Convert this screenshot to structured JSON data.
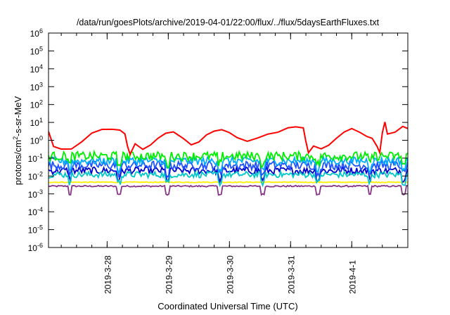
{
  "chart_data": {
    "type": "line",
    "title": "/data/run/goesPlots/archive/2019-04-01/22:00/flux/../flux/5daysEarthFluxes.txt",
    "xlabel": "Coordinated Universal Time (UTC)",
    "ylabel": {
      "base": "protons/cm",
      "sup": "2",
      "rest": "-s-sr-MeV"
    },
    "y_scale": "log",
    "ylim": [
      1e-06,
      1000000.0
    ],
    "x_range_days": [
      "2019-03-27 01:00",
      "2019-04-01 22:00"
    ],
    "y_ticks": [
      {
        "value": 1000000.0,
        "base": "10",
        "exp": "6"
      },
      {
        "value": 100000.0,
        "base": "10",
        "exp": "5"
      },
      {
        "value": 10000.0,
        "base": "10",
        "exp": "4"
      },
      {
        "value": 1000.0,
        "base": "10",
        "exp": "3"
      },
      {
        "value": 100.0,
        "base": "10",
        "exp": "2"
      },
      {
        "value": 10.0,
        "base": "10",
        "exp": "1"
      },
      {
        "value": 1.0,
        "base": "10",
        "exp": "0"
      },
      {
        "value": 0.1,
        "base": "10",
        "exp": "-1"
      },
      {
        "value": 0.01,
        "base": "10",
        "exp": "-2"
      },
      {
        "value": 0.001,
        "base": "10",
        "exp": "-3"
      },
      {
        "value": 0.0001,
        "base": "10",
        "exp": "-4"
      },
      {
        "value": 1e-05,
        "base": "10",
        "exp": "-5"
      },
      {
        "value": 1e-06,
        "base": "10",
        "exp": "-6"
      }
    ],
    "x_ticks": [
      {
        "label": "2019-3-28",
        "date": "2019-03-28"
      },
      {
        "label": "2019-3-29",
        "date": "2019-03-29"
      },
      {
        "label": "2019-3-30",
        "date": "2019-03-30"
      },
      {
        "label": "2019-3-31",
        "date": "2019-03-31"
      },
      {
        "label": "2019-4-1",
        "date": "2019-04-01"
      }
    ],
    "grid": false,
    "series": [
      {
        "color": "#ff0000",
        "points": [
          [
            "2019-03-27 01:00",
            3.5
          ],
          [
            "2019-03-27 03:00",
            0.5
          ],
          [
            "2019-03-27 06:00",
            0.3
          ],
          [
            "2019-03-27 10:00",
            0.3
          ],
          [
            "2019-03-27 14:00",
            0.8
          ],
          [
            "2019-03-27 18:00",
            2.5
          ],
          [
            "2019-03-27 22:00",
            4
          ],
          [
            "2019-03-28 02:00",
            4.5
          ],
          [
            "2019-03-28 05:00",
            4
          ],
          [
            "2019-03-28 07:00",
            2.5
          ],
          [
            "2019-03-28 08:00",
            0.5
          ],
          [
            "2019-03-28 09:00",
            0.15
          ],
          [
            "2019-03-28 11:00",
            0.6
          ],
          [
            "2019-03-28 14:00",
            0.3
          ],
          [
            "2019-03-28 17:00",
            0.5
          ],
          [
            "2019-03-28 20:00",
            1.2
          ],
          [
            "2019-03-28 23:00",
            2.5
          ],
          [
            "2019-03-29 02:00",
            3
          ],
          [
            "2019-03-29 06:00",
            1.2
          ],
          [
            "2019-03-29 09:00",
            0.6
          ],
          [
            "2019-03-29 12:00",
            0.8
          ],
          [
            "2019-03-29 15:00",
            1.8
          ],
          [
            "2019-03-29 18:00",
            3
          ],
          [
            "2019-03-29 21:00",
            4
          ],
          [
            "2019-03-30 00:00",
            3
          ],
          [
            "2019-03-30 03:00",
            1.5
          ],
          [
            "2019-03-30 07:00",
            0.9
          ],
          [
            "2019-03-30 11:00",
            1.2
          ],
          [
            "2019-03-30 15:00",
            2
          ],
          [
            "2019-03-30 19:00",
            3
          ],
          [
            "2019-03-30 23:00",
            4.5
          ],
          [
            "2019-03-31 02:00",
            5
          ],
          [
            "2019-03-31 05:00",
            4.5
          ],
          [
            "2019-03-31 06:00",
            1
          ],
          [
            "2019-03-31 07:00",
            0.2
          ],
          [
            "2019-03-31 09:00",
            0.5
          ],
          [
            "2019-03-31 12:00",
            0.3
          ],
          [
            "2019-03-31 15:00",
            0.6
          ],
          [
            "2019-03-31 18:00",
            1.2
          ],
          [
            "2019-03-31 21:00",
            3
          ],
          [
            "2019-04-01 00:00",
            4.5
          ],
          [
            "2019-04-01 03:00",
            2.5
          ],
          [
            "2019-04-01 06:00",
            1.5
          ],
          [
            "2019-04-01 08:00",
            1.2
          ],
          [
            "2019-04-01 10:00",
            0.4
          ],
          [
            "2019-04-01 11:00",
            0.2
          ],
          [
            "2019-04-01 12:00",
            3
          ],
          [
            "2019-04-01 13:00",
            12
          ],
          [
            "2019-04-01 14:00",
            2
          ],
          [
            "2019-04-01 17:00",
            3
          ],
          [
            "2019-04-01 20:00",
            6
          ],
          [
            "2019-04-01 22:00",
            4.5
          ]
        ]
      },
      {
        "color": "#00ee00",
        "base": 0.13,
        "jitter": 0.5,
        "dips": true
      },
      {
        "color": "#00aaff",
        "base": 0.07,
        "jitter": 0.45,
        "dips": true
      },
      {
        "color": "#1e50ff",
        "base": 0.04,
        "jitter": 0.5,
        "dips": true
      },
      {
        "color": "#00c8c8",
        "base": 0.012,
        "jitter": 0.35,
        "dips": true
      },
      {
        "color": "#0000cc",
        "base": 0.02,
        "jitter": 0.4,
        "dips": true
      },
      {
        "color": "#ffee00",
        "base": 0.0045,
        "jitter": 0.05,
        "dips": false
      },
      {
        "color": "#883388",
        "base": 0.0027,
        "jitter": 0.08,
        "dips": true
      }
    ]
  }
}
